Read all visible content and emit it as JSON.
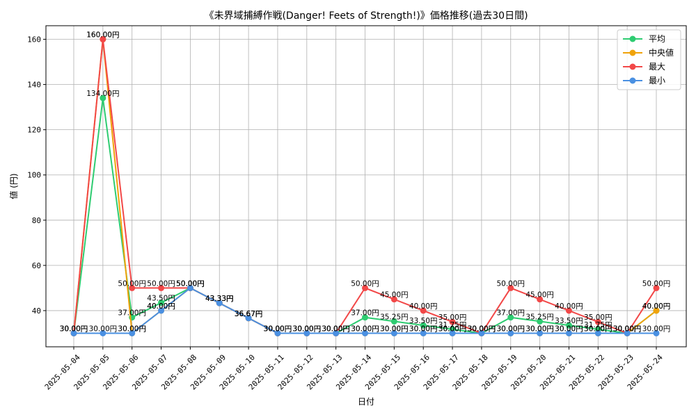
{
  "chart_data": {
    "type": "line",
    "title": "《未界域捕縛作戦(Danger! Feets of Strength!)》価格推移(過去30日間)",
    "xlabel": "日付",
    "ylabel": "値 (円)",
    "ylim": [
      24,
      166
    ],
    "yticks": [
      40,
      60,
      80,
      100,
      120,
      140,
      160
    ],
    "grid": true,
    "legend_position": "top-right",
    "value_suffix": "円",
    "categories": [
      "2025-05-04",
      "2025-05-05",
      "2025-05-06",
      "2025-05-07",
      "2025-05-08",
      "2025-05-09",
      "2025-05-10",
      "2025-05-11",
      "2025-05-12",
      "2025-05-13",
      "2025-05-14",
      "2025-05-15",
      "2025-05-16",
      "2025-05-17",
      "2025-05-18",
      "2025-05-19",
      "2025-05-20",
      "2025-05-21",
      "2025-05-22",
      "2025-05-23",
      "2025-05-24"
    ],
    "series": [
      {
        "name": "平均",
        "color": "#2ecc71",
        "values": [
          30,
          134,
          37,
          43.5,
          50,
          43.33,
          36.67,
          30,
          30,
          30,
          37,
          35.25,
          33.5,
          31.75,
          30,
          37,
          35.25,
          33.5,
          31.75,
          30,
          40
        ]
      },
      {
        "name": "中央値",
        "color": "#f0a30a",
        "values": [
          30,
          160,
          30,
          40,
          50,
          43.33,
          36.67,
          30,
          30,
          30,
          30,
          30,
          30,
          30,
          30,
          30,
          30,
          30,
          30,
          30,
          40
        ]
      },
      {
        "name": "最大",
        "color": "#f24848",
        "values": [
          30,
          160,
          50,
          50,
          50,
          43.33,
          36.67,
          30,
          30,
          30,
          50,
          45,
          40,
          35,
          30,
          50,
          45,
          40,
          35,
          30,
          50
        ]
      },
      {
        "name": "最小",
        "color": "#4a90e2",
        "values": [
          30,
          30,
          30,
          40,
          50,
          43.33,
          36.67,
          30,
          30,
          30,
          30,
          30,
          30,
          30,
          30,
          30,
          30,
          30,
          30,
          30,
          30
        ]
      }
    ]
  }
}
